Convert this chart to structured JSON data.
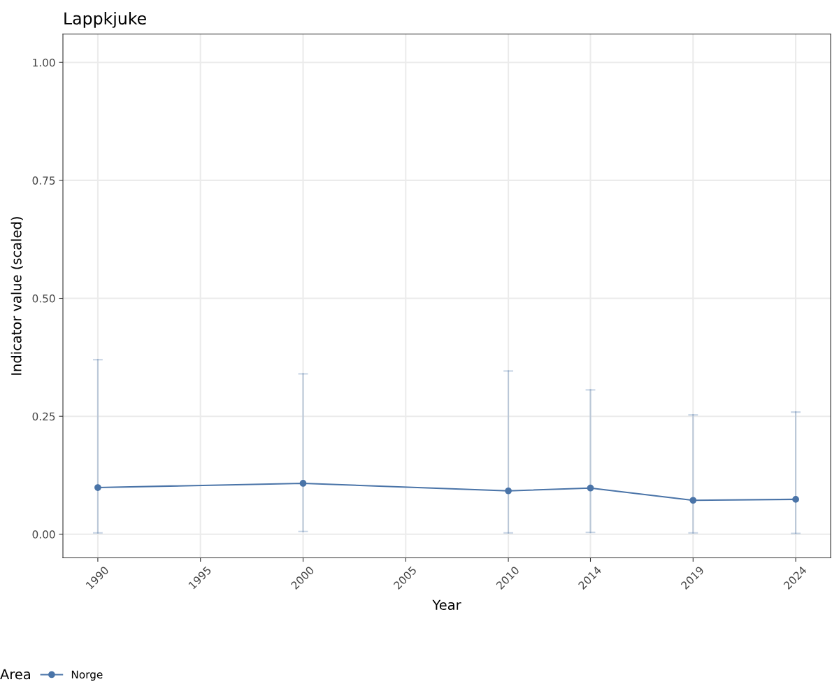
{
  "chart_data": {
    "type": "line",
    "title": "Lappkjuke",
    "xlabel": "Year",
    "ylabel": "Indicator value (scaled)",
    "legend_title": "Area",
    "x": [
      1990,
      2000,
      2010,
      2014,
      2019,
      2024
    ],
    "series": [
      {
        "name": "Norge",
        "color": "#4a74a8",
        "values": [
          0.099,
          0.108,
          0.092,
          0.098,
          0.072,
          0.074
        ],
        "errors": [
          [
            0.003,
            0.37
          ],
          [
            0.006,
            0.34
          ],
          [
            0.003,
            0.346
          ],
          [
            0.004,
            0.306
          ],
          [
            0.003,
            0.253
          ],
          [
            0.002,
            0.259
          ]
        ]
      }
    ],
    "xlim": [
      1988.3,
      2025.7
    ],
    "xticks": [
      1990,
      1995,
      2000,
      2005,
      2010,
      2014,
      2019,
      2024
    ],
    "ylim": [
      -0.05,
      1.06
    ],
    "yticks": [
      {
        "value": 0,
        "label": "0.00"
      },
      {
        "value": 0.25,
        "label": "0.25"
      },
      {
        "value": 0.5,
        "label": "0.50"
      },
      {
        "value": 0.75,
        "label": "0.75"
      },
      {
        "value": 1,
        "label": "1.00"
      }
    ],
    "grid": true,
    "legend": "bottom",
    "marker": "circle",
    "line_style": "solid"
  }
}
